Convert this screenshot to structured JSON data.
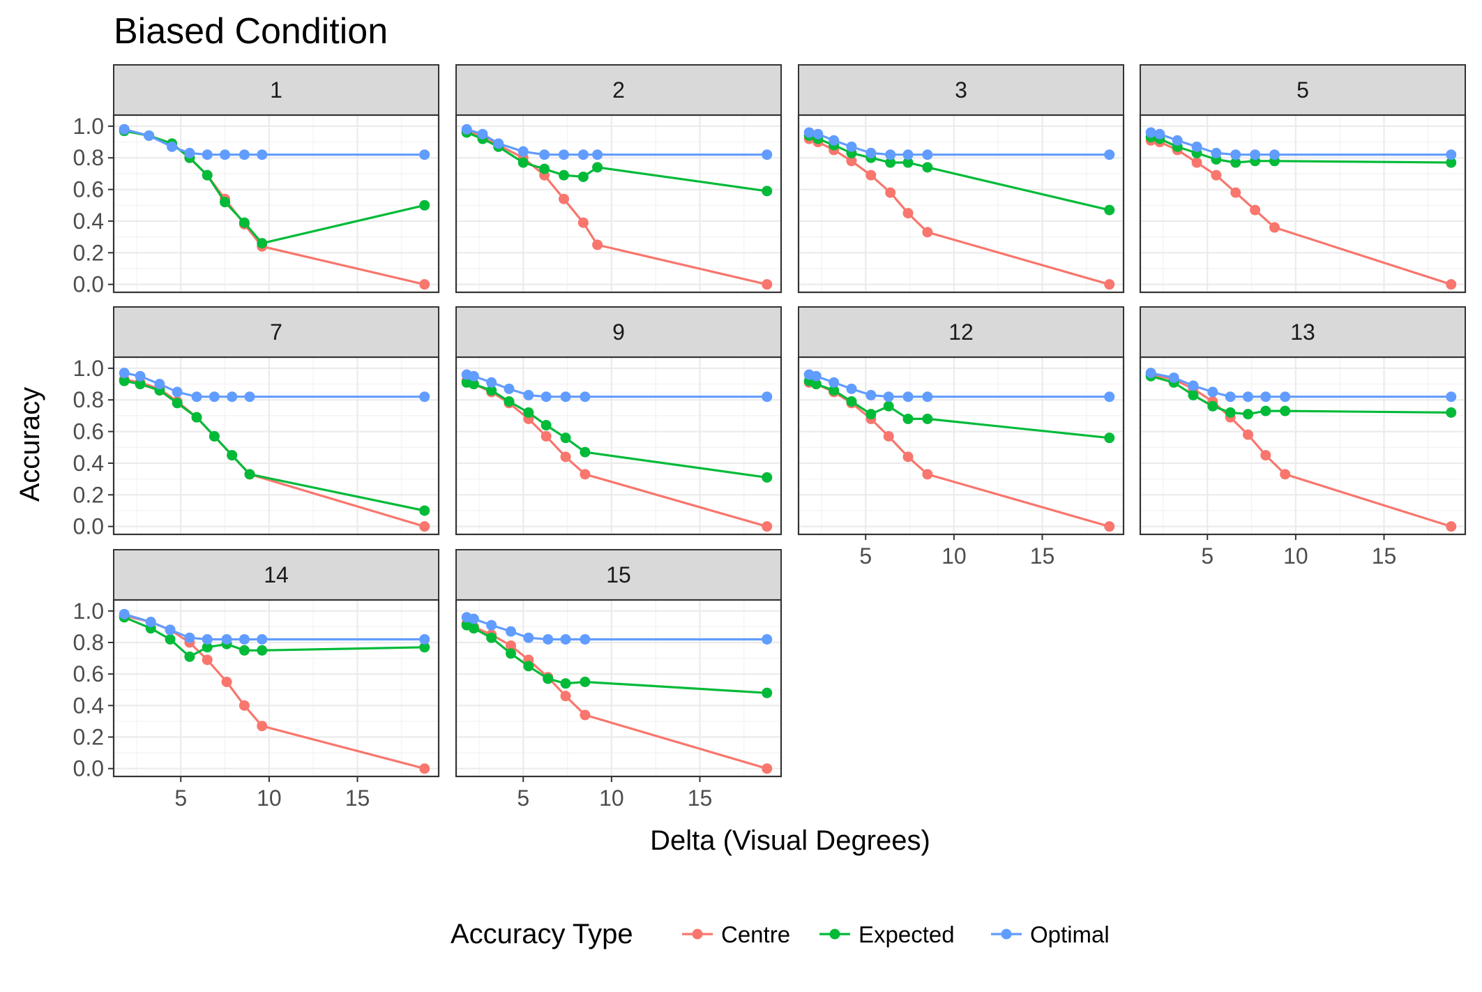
{
  "chart_data": {
    "type": "line",
    "title": "Biased Condition",
    "xlabel": "Delta (Visual Degrees)",
    "ylabel": "Accuracy",
    "xlim": [
      1.2,
      19.6
    ],
    "ylim": [
      -0.05,
      1.07
    ],
    "x_ticks": [
      5,
      10,
      15
    ],
    "y_ticks": [
      "0.0",
      "0.2",
      "0.4",
      "0.6",
      "0.8",
      "1.0"
    ],
    "grid": true,
    "legend": {
      "title": "Accuracy Type",
      "position": "bottom",
      "entries": [
        "Centre",
        "Expected",
        "Optimal"
      ]
    },
    "series_colors": {
      "Centre": "#F8766D",
      "Expected": "#00BA38",
      "Optimal": "#619CFF"
    },
    "panels": [
      {
        "label": "1",
        "x": [
          1.8,
          3.2,
          4.5,
          5.5,
          6.5,
          7.5,
          8.6,
          9.6,
          18.8
        ],
        "series": [
          {
            "name": "Centre",
            "values": [
              0.98,
              0.94,
              0.89,
              0.8,
              0.69,
              0.54,
              0.38,
              0.24,
              0.0
            ]
          },
          {
            "name": "Expected",
            "values": [
              0.97,
              0.94,
              0.89,
              0.8,
              0.69,
              0.52,
              0.39,
              0.26,
              0.5
            ]
          },
          {
            "name": "Optimal",
            "values": [
              0.98,
              0.94,
              0.87,
              0.83,
              0.82,
              0.82,
              0.82,
              0.82,
              0.82
            ]
          }
        ]
      },
      {
        "label": "2",
        "x": [
          1.8,
          2.7,
          3.6,
          5.0,
          6.2,
          7.3,
          8.4,
          9.2,
          18.8
        ],
        "series": [
          {
            "name": "Centre",
            "values": [
              0.97,
              0.94,
              0.88,
              0.8,
              0.69,
              0.54,
              0.39,
              0.25,
              0.0
            ]
          },
          {
            "name": "Expected",
            "values": [
              0.96,
              0.92,
              0.87,
              0.77,
              0.73,
              0.69,
              0.68,
              0.74,
              0.59
            ]
          },
          {
            "name": "Optimal",
            "values": [
              0.98,
              0.95,
              0.89,
              0.84,
              0.82,
              0.82,
              0.82,
              0.82,
              0.82
            ]
          }
        ]
      },
      {
        "label": "3",
        "x": [
          1.8,
          2.3,
          3.2,
          4.2,
          5.3,
          6.4,
          7.4,
          8.5,
          18.8
        ],
        "series": [
          {
            "name": "Centre",
            "values": [
              0.92,
              0.9,
              0.85,
              0.78,
              0.69,
              0.58,
              0.45,
              0.33,
              0.0
            ]
          },
          {
            "name": "Expected",
            "values": [
              0.94,
              0.92,
              0.88,
              0.83,
              0.8,
              0.77,
              0.77,
              0.74,
              0.47
            ]
          },
          {
            "name": "Optimal",
            "values": [
              0.96,
              0.95,
              0.91,
              0.87,
              0.83,
              0.82,
              0.82,
              0.82,
              0.82
            ]
          }
        ]
      },
      {
        "label": "5",
        "x": [
          1.8,
          2.3,
          3.3,
          4.4,
          5.5,
          6.6,
          7.7,
          8.8,
          18.8
        ],
        "series": [
          {
            "name": "Centre",
            "values": [
              0.91,
              0.9,
              0.85,
              0.77,
              0.69,
              0.58,
              0.47,
              0.36,
              0.0
            ]
          },
          {
            "name": "Expected",
            "values": [
              0.93,
              0.92,
              0.87,
              0.83,
              0.79,
              0.77,
              0.78,
              0.78,
              0.77
            ]
          },
          {
            "name": "Optimal",
            "values": [
              0.96,
              0.95,
              0.91,
              0.87,
              0.83,
              0.82,
              0.82,
              0.82,
              0.82
            ]
          }
        ]
      },
      {
        "label": "7",
        "x": [
          1.8,
          2.7,
          3.8,
          4.8,
          5.9,
          6.9,
          7.9,
          8.9,
          18.8
        ],
        "series": [
          {
            "name": "Centre",
            "values": [
              0.93,
              0.91,
              0.87,
              0.79,
              0.69,
              0.57,
              0.45,
              0.33,
              0.0
            ]
          },
          {
            "name": "Expected",
            "values": [
              0.92,
              0.9,
              0.86,
              0.78,
              0.69,
              0.57,
              0.45,
              0.33,
              0.1
            ]
          },
          {
            "name": "Optimal",
            "values": [
              0.97,
              0.95,
              0.9,
              0.85,
              0.82,
              0.82,
              0.82,
              0.82,
              0.82
            ]
          }
        ]
      },
      {
        "label": "9",
        "x": [
          1.8,
          2.2,
          3.2,
          4.2,
          5.3,
          6.3,
          7.4,
          8.5,
          18.8
        ],
        "series": [
          {
            "name": "Centre",
            "values": [
              0.92,
              0.9,
              0.85,
              0.78,
              0.68,
              0.57,
              0.44,
              0.33,
              0.0
            ]
          },
          {
            "name": "Expected",
            "values": [
              0.91,
              0.9,
              0.86,
              0.79,
              0.72,
              0.64,
              0.56,
              0.47,
              0.31
            ]
          },
          {
            "name": "Optimal",
            "values": [
              0.96,
              0.95,
              0.91,
              0.87,
              0.83,
              0.82,
              0.82,
              0.82,
              0.82
            ]
          }
        ]
      },
      {
        "label": "12",
        "x": [
          1.8,
          2.2,
          3.2,
          4.2,
          5.3,
          6.3,
          7.4,
          8.5,
          18.8
        ],
        "series": [
          {
            "name": "Centre",
            "values": [
              0.91,
              0.9,
              0.85,
              0.78,
              0.68,
              0.57,
              0.44,
              0.33,
              0.0
            ]
          },
          {
            "name": "Expected",
            "values": [
              0.92,
              0.9,
              0.86,
              0.79,
              0.71,
              0.76,
              0.68,
              0.68,
              0.56
            ]
          },
          {
            "name": "Optimal",
            "values": [
              0.96,
              0.95,
              0.91,
              0.87,
              0.83,
              0.82,
              0.82,
              0.82,
              0.82
            ]
          }
        ]
      },
      {
        "label": "13",
        "x": [
          1.8,
          3.1,
          4.2,
          5.3,
          6.3,
          7.3,
          8.3,
          9.4,
          18.8
        ],
        "series": [
          {
            "name": "Centre",
            "values": [
              0.96,
              0.93,
              0.87,
              0.79,
              0.69,
              0.58,
              0.45,
              0.33,
              0.0
            ]
          },
          {
            "name": "Expected",
            "values": [
              0.95,
              0.91,
              0.83,
              0.76,
              0.72,
              0.71,
              0.73,
              0.73,
              0.72
            ]
          },
          {
            "name": "Optimal",
            "values": [
              0.97,
              0.94,
              0.89,
              0.85,
              0.82,
              0.82,
              0.82,
              0.82,
              0.82
            ]
          }
        ]
      },
      {
        "label": "14",
        "x": [
          1.8,
          3.3,
          4.4,
          5.5,
          6.5,
          7.6,
          8.6,
          9.6,
          18.8
        ],
        "series": [
          {
            "name": "Centre",
            "values": [
              0.97,
              0.93,
              0.88,
              0.8,
              0.69,
              0.55,
              0.4,
              0.27,
              0.0
            ]
          },
          {
            "name": "Expected",
            "values": [
              0.96,
              0.89,
              0.82,
              0.71,
              0.77,
              0.79,
              0.75,
              0.75,
              0.77
            ]
          },
          {
            "name": "Optimal",
            "values": [
              0.98,
              0.93,
              0.88,
              0.83,
              0.82,
              0.82,
              0.82,
              0.82,
              0.82
            ]
          }
        ]
      },
      {
        "label": "15",
        "x": [
          1.8,
          2.2,
          3.2,
          4.3,
          5.3,
          6.4,
          7.4,
          8.5,
          18.8
        ],
        "series": [
          {
            "name": "Centre",
            "values": [
              0.92,
              0.9,
              0.85,
              0.78,
              0.69,
              0.58,
              0.46,
              0.34,
              0.0
            ]
          },
          {
            "name": "Expected",
            "values": [
              0.91,
              0.89,
              0.83,
              0.73,
              0.65,
              0.57,
              0.54,
              0.55,
              0.48
            ]
          },
          {
            "name": "Optimal",
            "values": [
              0.96,
              0.95,
              0.91,
              0.87,
              0.83,
              0.82,
              0.82,
              0.82,
              0.82
            ]
          }
        ]
      }
    ]
  }
}
